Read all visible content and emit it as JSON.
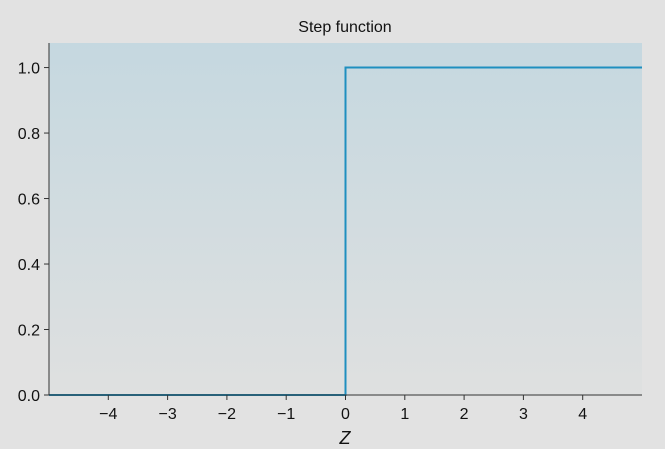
{
  "chart_data": {
    "type": "line",
    "title": "Step function",
    "xlabel": "Z",
    "ylabel": "",
    "xlim": [
      -5,
      5
    ],
    "ylim": [
      0,
      1.075
    ],
    "x_ticks": [
      -4,
      -3,
      -2,
      -1,
      0,
      1,
      2,
      3,
      4
    ],
    "x_tick_labels": [
      "−4",
      "−3",
      "−2",
      "−1",
      "0",
      "1",
      "2",
      "3",
      "4"
    ],
    "y_ticks": [
      0.0,
      0.2,
      0.4,
      0.6,
      0.8,
      1.0
    ],
    "y_tick_labels": [
      "0.0",
      "0.2",
      "0.4",
      "0.6",
      "0.8",
      "1.0"
    ],
    "grid": false,
    "legend": "none",
    "series": [
      {
        "step": "post",
        "x": [
          -5,
          0,
          0,
          5
        ],
        "y": [
          0,
          0,
          1,
          1
        ],
        "color": "#1f8fbf"
      }
    ],
    "colors": {
      "figure_background": "#e2e2e2",
      "plot_gradient_top": "#c5d8e0",
      "plot_gradient_bottom": "#dfe0e0",
      "axes": "#333333",
      "line": "#1f8fbf"
    }
  }
}
